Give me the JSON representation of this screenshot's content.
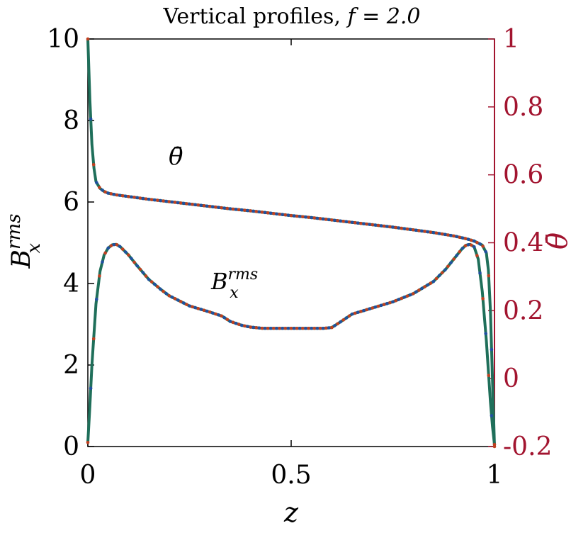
{
  "chart_data": {
    "type": "line",
    "title": "Vertical profiles, ",
    "title_math": "f = 2.0",
    "xlabel": "z",
    "ylabel_left": {
      "base": "B",
      "sup": "rms",
      "sub": "x"
    },
    "ylabel_right": "θ̄",
    "xlim": [
      0,
      1
    ],
    "ylim_left": [
      0,
      10
    ],
    "ylim_right": [
      -0.2,
      1
    ],
    "x_ticks": [
      {
        "value": 0,
        "label": "0"
      },
      {
        "value": 0.5,
        "label": "0.5"
      },
      {
        "value": 1,
        "label": "1"
      }
    ],
    "y_ticks_left": [
      {
        "value": 0,
        "label": "0"
      },
      {
        "value": 2,
        "label": "2"
      },
      {
        "value": 4,
        "label": "4"
      },
      {
        "value": 6,
        "label": "6"
      },
      {
        "value": 8,
        "label": "8"
      },
      {
        "value": 10,
        "label": "10"
      }
    ],
    "y_ticks_right": [
      {
        "value": -0.2,
        "label": "-0.2"
      },
      {
        "value": 0,
        "label": "0"
      },
      {
        "value": 0.2,
        "label": "0.2"
      },
      {
        "value": 0.4,
        "label": "0.4"
      },
      {
        "value": 0.6,
        "label": "0.6"
      },
      {
        "value": 0.8,
        "label": "0.8"
      },
      {
        "value": 1,
        "label": "1"
      }
    ],
    "grid": false,
    "right_axis_color": "#a2142f",
    "annotations": [
      {
        "id": "theta",
        "text": "θ̄",
        "x": 0.2,
        "y": 6.9,
        "axis": "left"
      },
      {
        "id": "brms",
        "text": "B_x^rms",
        "x": 0.31,
        "y": 3.9,
        "axis": "left"
      }
    ],
    "series": [
      {
        "key": "theta",
        "axis": "right",
        "colors": {
          "line": "#1f6f5a",
          "marker_a": "#c04020",
          "marker_b": "#2050a0"
        },
        "x": [
          0,
          0.005,
          0.01,
          0.015,
          0.02,
          0.03,
          0.04,
          0.05,
          0.07,
          0.1,
          0.15,
          0.2,
          0.25,
          0.3,
          0.35,
          0.4,
          0.45,
          0.5,
          0.55,
          0.6,
          0.65,
          0.7,
          0.75,
          0.8,
          0.85,
          0.9,
          0.93,
          0.95,
          0.97,
          0.98,
          0.985,
          0.99,
          0.995,
          1.0
        ],
        "y": [
          1.0,
          0.82,
          0.69,
          0.62,
          0.58,
          0.56,
          0.551,
          0.546,
          0.541,
          0.536,
          0.528,
          0.521,
          0.514,
          0.507,
          0.5,
          0.494,
          0.487,
          0.48,
          0.474,
          0.467,
          0.46,
          0.453,
          0.446,
          0.438,
          0.43,
          0.42,
          0.412,
          0.405,
          0.393,
          0.37,
          0.32,
          0.2,
          0.0,
          -0.2
        ]
      },
      {
        "key": "brms",
        "axis": "left",
        "colors": {
          "line": "#1f6f5a",
          "marker_a": "#c04020",
          "marker_b": "#2050a0"
        },
        "x": [
          0,
          0.005,
          0.01,
          0.02,
          0.03,
          0.04,
          0.05,
          0.06,
          0.07,
          0.08,
          0.1,
          0.12,
          0.15,
          0.18,
          0.2,
          0.25,
          0.3,
          0.33,
          0.35,
          0.38,
          0.4,
          0.43,
          0.45,
          0.5,
          0.55,
          0.58,
          0.6,
          0.62,
          0.65,
          0.7,
          0.75,
          0.8,
          0.85,
          0.88,
          0.9,
          0.92,
          0.93,
          0.94,
          0.95,
          0.96,
          0.97,
          0.98,
          0.99,
          0.995,
          1.0
        ],
        "y": [
          0.1,
          1.0,
          2.0,
          3.5,
          4.3,
          4.7,
          4.87,
          4.95,
          4.96,
          4.9,
          4.7,
          4.45,
          4.1,
          3.85,
          3.7,
          3.45,
          3.3,
          3.2,
          3.07,
          2.97,
          2.93,
          2.9,
          2.9,
          2.9,
          2.9,
          2.9,
          2.92,
          3.05,
          3.25,
          3.4,
          3.55,
          3.75,
          4.05,
          4.35,
          4.6,
          4.85,
          4.94,
          4.96,
          4.9,
          4.6,
          3.8,
          2.6,
          1.1,
          0.5,
          0.05
        ]
      }
    ]
  }
}
